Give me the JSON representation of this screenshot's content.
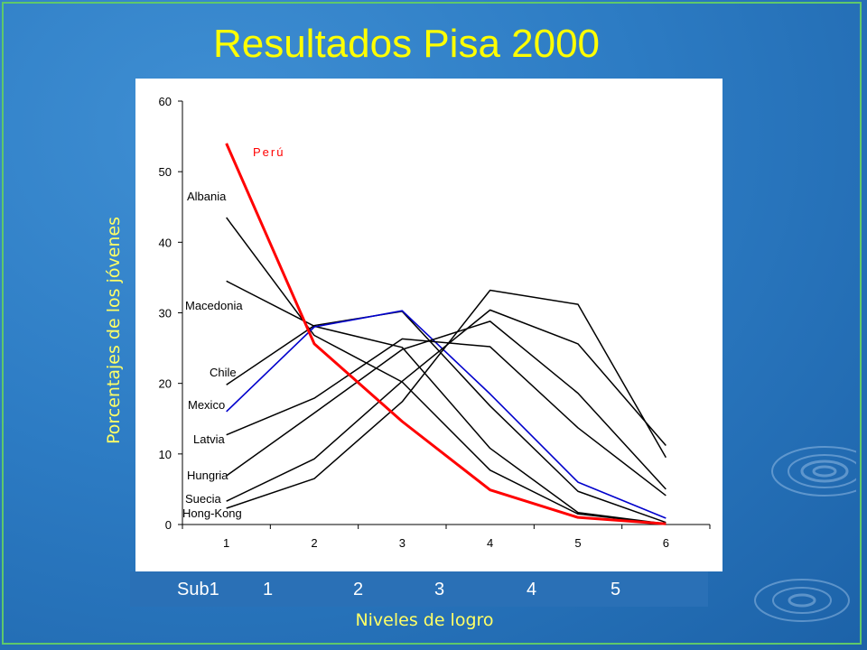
{
  "slide": {
    "title": "Resultados Pisa 2000",
    "ylabel": "Porcentajes de los jóvenes",
    "xlabel": "Niveles de logro",
    "bottom_categories": [
      "Sub1",
      "1",
      "2",
      "3",
      "4",
      "5"
    ]
  },
  "chart_data": {
    "type": "line",
    "x": [
      1,
      2,
      3,
      4,
      5,
      6
    ],
    "xlim": [
      0.5,
      6.5
    ],
    "ylim": [
      0,
      60
    ],
    "yticks": [
      0,
      10,
      20,
      30,
      40,
      50,
      60
    ],
    "grid": false,
    "legend": "inline labels at left",
    "series": [
      {
        "name": "Perú",
        "color": "#ff0000",
        "values": [
          54.0,
          25.6,
          14.6,
          4.9,
          1.0,
          0.1
        ]
      },
      {
        "name": "Albania",
        "color": "#000000",
        "values": [
          43.5,
          26.8,
          20.2,
          7.7,
          1.5,
          0.1
        ]
      },
      {
        "name": "Macedonia",
        "color": "#000000",
        "values": [
          34.5,
          28.1,
          25.1,
          10.8,
          1.7,
          0.1
        ]
      },
      {
        "name": "Chile",
        "color": "#000000",
        "values": [
          19.8,
          28.2,
          30.2,
          16.8,
          4.7,
          0.3
        ]
      },
      {
        "name": "Mexico",
        "color": "#0000cc",
        "values": [
          16.0,
          28.0,
          30.3,
          18.5,
          6.0,
          0.9
        ]
      },
      {
        "name": "Latvia",
        "color": "#000000",
        "values": [
          12.7,
          17.9,
          26.3,
          25.2,
          13.7,
          4.1
        ]
      },
      {
        "name": "Hungria",
        "color": "#000000",
        "values": [
          6.9,
          15.8,
          24.8,
          28.8,
          18.6,
          5.0
        ]
      },
      {
        "name": "Suecia",
        "color": "#000000",
        "values": [
          3.3,
          9.3,
          20.3,
          30.4,
          25.6,
          11.2
        ]
      },
      {
        "name": "Hong-Kong",
        "color": "#000000",
        "values": [
          2.3,
          6.5,
          17.4,
          33.2,
          31.2,
          9.5
        ]
      }
    ]
  }
}
